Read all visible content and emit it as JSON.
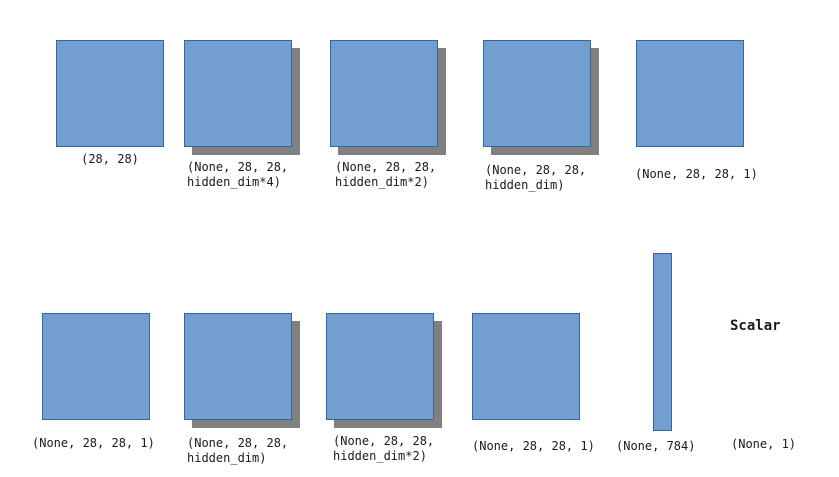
{
  "colors": {
    "block_fill": "#729fcf",
    "block_border": "#3465a4",
    "shadow": "#808080"
  },
  "row1": {
    "input": {
      "label": "(28, 28)"
    },
    "layer1": {
      "label": "(None, 28, 28,\nhidden_dim*4)"
    },
    "layer2": {
      "label": "(None, 28, 28,\nhidden_dim*2)"
    },
    "layer3": {
      "label": "(None, 28, 28,\nhidden_dim)"
    },
    "output": {
      "label": "(None, 28, 28, 1)"
    }
  },
  "row2": {
    "input": {
      "label": "(None, 28, 28, 1)"
    },
    "layer1": {
      "label": "(None, 28, 28,\nhidden_dim)"
    },
    "layer2": {
      "label": "(None, 28, 28,\nhidden_dim*2)"
    },
    "layer3": {
      "label": "(None, 28, 28, 1)"
    },
    "flatten": {
      "label": "(None, 784)"
    },
    "scalar": {
      "title": "Scalar",
      "label": "(None, 1)"
    }
  }
}
